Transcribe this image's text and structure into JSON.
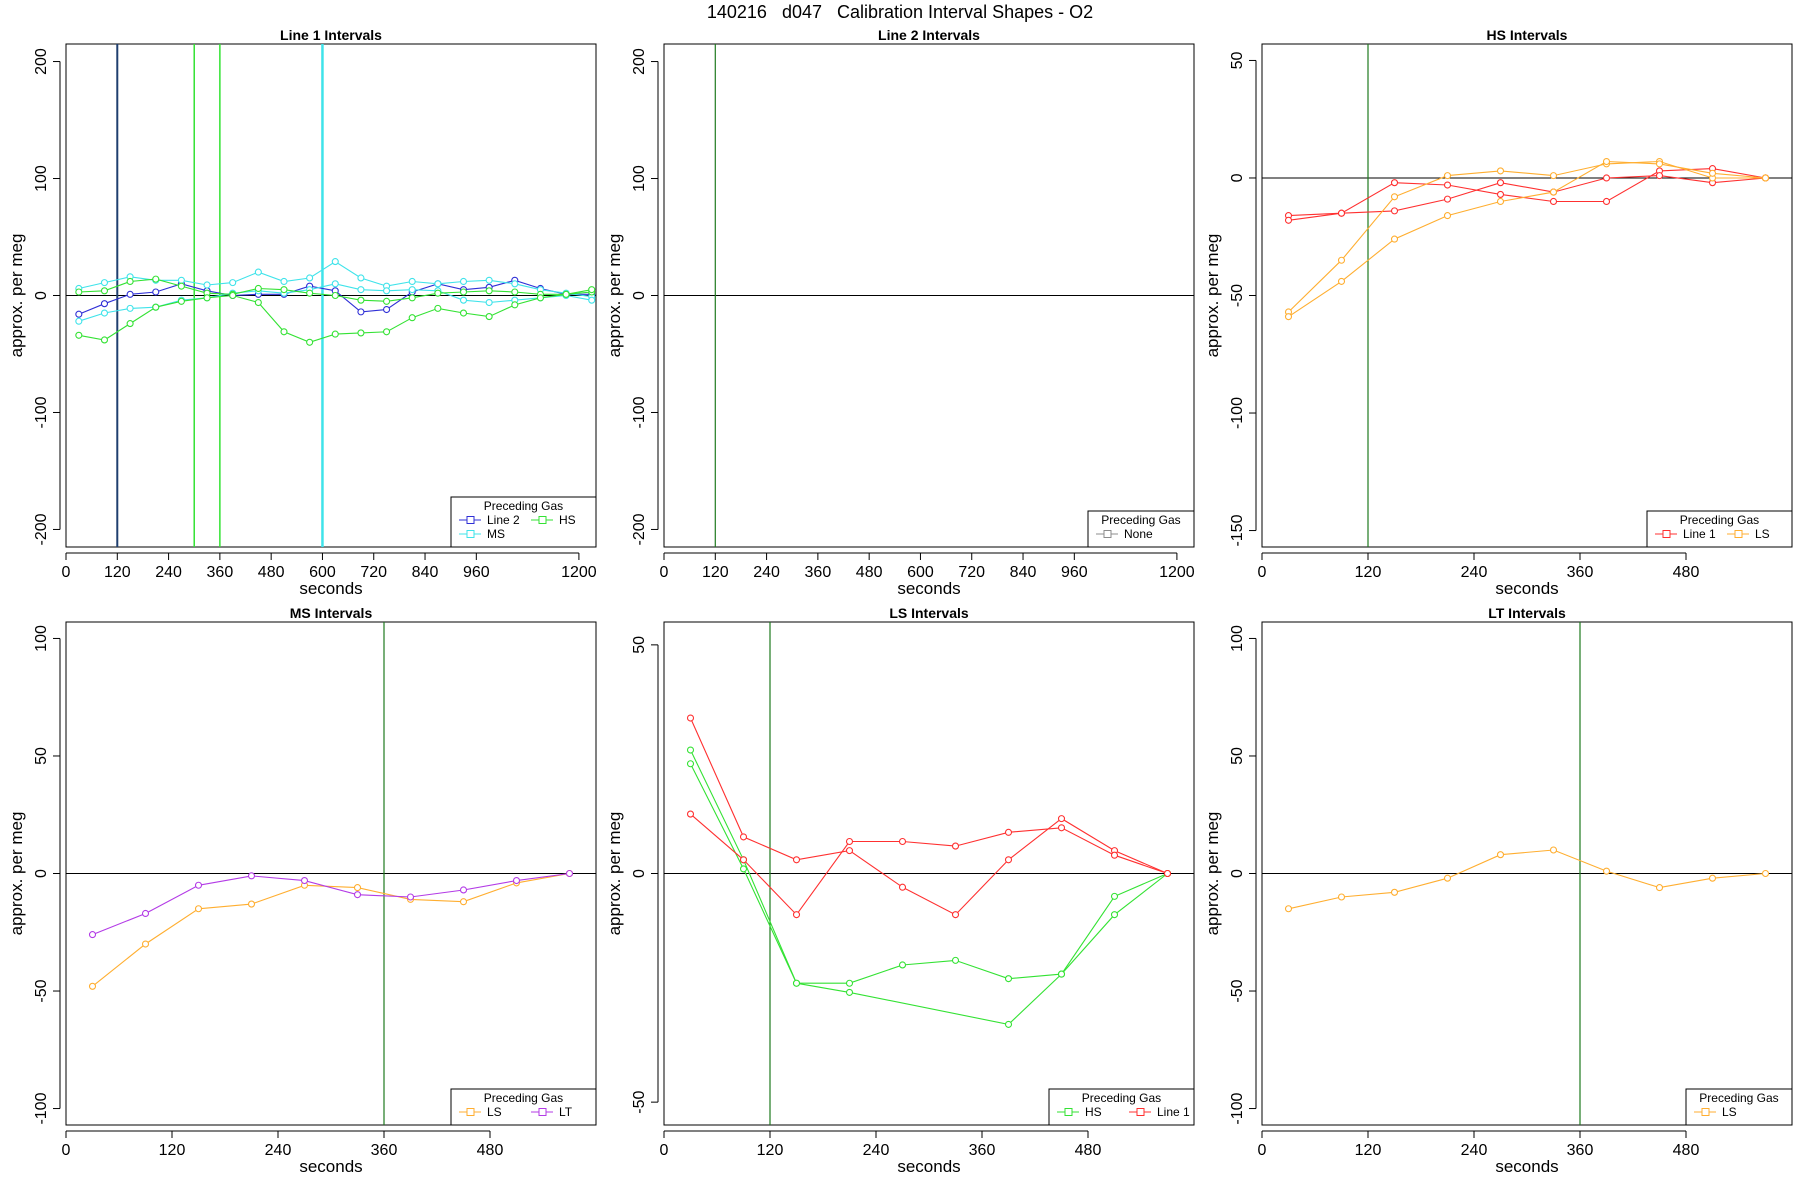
{
  "page_title": "140216   d047   Calibration Interval Shapes - O2",
  "colors": {
    "Line 1": "#ff3030",
    "Line 2": "#2f2fd6",
    "HS": "#33e233",
    "MS": "#3fe3ea",
    "LS": "#ffae30",
    "LT": "#b33be6",
    "None": "#8c8c8c",
    "vline": "#1f7a1f",
    "axis": "#000000"
  },
  "chart_data": [
    {
      "type": "line",
      "title": "Line 1 Intervals",
      "xlabel": "seconds",
      "ylabel": "approx. per meg",
      "xlim": [
        0,
        1240
      ],
      "ylim": [
        -215,
        215
      ],
      "xticks": [
        0,
        120,
        240,
        360,
        480,
        600,
        720,
        840,
        960,
        1200
      ],
      "yticks": [
        -200,
        -100,
        0,
        100,
        200
      ],
      "vlines": [
        {
          "x": 120,
          "color": "#1f3f6f",
          "width": 2
        },
        {
          "x": 300,
          "color": "#33e233",
          "width": 1.5
        },
        {
          "x": 360,
          "color": "#33e233",
          "width": 1.5
        },
        {
          "x": 600,
          "color": "#3fe3ea",
          "width": 2.5
        }
      ],
      "legend": {
        "title": "Preceding Gas",
        "entries": [
          "Line 2",
          "HS",
          "MS"
        ],
        "position": "bottom-right"
      },
      "series": [
        {
          "name": "Line 2",
          "x": [
            30,
            90,
            150,
            210,
            270,
            330,
            390,
            450,
            510,
            570,
            630,
            690,
            750,
            810,
            870,
            930,
            990,
            1050,
            1110,
            1170,
            1230
          ],
          "y": [
            -16,
            -7,
            1,
            3,
            10,
            4,
            0,
            1,
            1,
            8,
            4,
            -14,
            -12,
            3,
            10,
            5,
            7,
            13,
            6,
            1,
            1
          ]
        },
        {
          "name": "MS",
          "x": [
            30,
            90,
            150,
            210,
            270,
            330,
            390,
            450,
            510,
            570,
            630,
            690,
            750,
            810,
            870,
            930,
            990,
            1050,
            1110,
            1170,
            1230
          ],
          "y": [
            6,
            11,
            16,
            13,
            13,
            9,
            11,
            20,
            12,
            15,
            29,
            15,
            8,
            12,
            10,
            12,
            13,
            10,
            5,
            2,
            -1
          ]
        },
        {
          "name": "MS",
          "x": [
            30,
            90,
            150,
            210,
            270,
            330,
            390,
            450,
            510,
            570,
            630,
            690,
            750,
            810,
            870,
            930,
            990,
            1050,
            1110,
            1170,
            1230
          ],
          "y": [
            -22,
            -15,
            -11,
            -10,
            -4,
            -2,
            2,
            4,
            2,
            5,
            10,
            5,
            4,
            5,
            4,
            -4,
            -6,
            -4,
            -2,
            0,
            -4
          ]
        },
        {
          "name": "HS",
          "x": [
            30,
            90,
            150,
            210,
            270,
            330,
            390,
            450,
            510,
            570,
            630,
            690,
            750,
            810,
            870,
            930,
            990,
            1050,
            1110,
            1170,
            1230
          ],
          "y": [
            3,
            4,
            12,
            14,
            8,
            2,
            1,
            6,
            5,
            2,
            0,
            -4,
            -5,
            -2,
            2,
            3,
            4,
            3,
            1,
            1,
            3
          ]
        },
        {
          "name": "HS",
          "x": [
            30,
            90,
            150,
            210,
            270,
            330,
            390,
            450,
            510,
            570,
            630,
            690,
            750,
            810,
            870,
            930,
            990,
            1050,
            1110,
            1170,
            1230
          ],
          "y": [
            -34,
            -38,
            -24,
            -10,
            -5,
            -2,
            0,
            -6,
            -31,
            -40,
            -33,
            -32,
            -31,
            -19,
            -11,
            -15,
            -18,
            -8,
            -2,
            1,
            5
          ]
        }
      ]
    },
    {
      "type": "line",
      "title": "Line 2 Intervals",
      "xlabel": "seconds",
      "ylabel": "approx. per meg",
      "xlim": [
        0,
        1240
      ],
      "ylim": [
        -215,
        215
      ],
      "xticks": [
        0,
        120,
        240,
        360,
        480,
        600,
        720,
        840,
        960,
        1200
      ],
      "yticks": [
        -200,
        -100,
        0,
        100,
        200
      ],
      "vlines": [
        {
          "x": 120,
          "color": "#1f7a1f",
          "width": 1.2
        }
      ],
      "legend": {
        "title": "Preceding Gas",
        "entries": [
          "None"
        ],
        "position": "bottom-right"
      },
      "series": []
    },
    {
      "type": "line",
      "title": "HS Intervals",
      "xlabel": "seconds",
      "ylabel": "approx. per meg",
      "xlim": [
        0,
        600
      ],
      "ylim": [
        -157,
        57
      ],
      "xticks": [
        0,
        120,
        240,
        360,
        480
      ],
      "yticks": [
        -150,
        -100,
        -50,
        0,
        50
      ],
      "vlines": [
        {
          "x": 120,
          "color": "#1f7a1f",
          "width": 1.2
        }
      ],
      "legend": {
        "title": "Preceding Gas",
        "entries": [
          "Line 1",
          "LS"
        ],
        "position": "bottom-right"
      },
      "series": [
        {
          "name": "Line 1",
          "x": [
            30,
            90,
            150,
            210,
            270,
            330,
            390,
            450,
            510,
            570
          ],
          "y": [
            -16,
            -15,
            -2,
            -3,
            -7,
            -10,
            -10,
            3,
            4,
            0
          ]
        },
        {
          "name": "Line 1",
          "x": [
            30,
            90,
            150,
            210,
            270,
            330,
            390,
            450,
            510,
            570
          ],
          "y": [
            -18,
            -15,
            -14,
            -9,
            -2,
            -6,
            0,
            1,
            -2,
            0
          ]
        },
        {
          "name": "LS",
          "x": [
            30,
            90,
            150,
            210,
            270,
            330,
            390,
            450,
            510,
            570
          ],
          "y": [
            -57,
            -35,
            -8,
            1,
            3,
            1,
            6,
            7,
            0,
            0
          ]
        },
        {
          "name": "LS",
          "x": [
            30,
            90,
            150,
            210,
            270,
            330,
            390,
            450,
            510,
            570
          ],
          "y": [
            -59,
            -44,
            -26,
            -16,
            -10,
            -6,
            7,
            6,
            2,
            0
          ]
        }
      ]
    },
    {
      "type": "line",
      "title": "MS Intervals",
      "xlabel": "seconds",
      "ylabel": "approx. per meg",
      "xlim": [
        0,
        600
      ],
      "ylim": [
        -107,
        107
      ],
      "xticks": [
        0,
        120,
        240,
        360,
        480
      ],
      "yticks": [
        -100,
        -50,
        0,
        50,
        100
      ],
      "vlines": [
        {
          "x": 360,
          "color": "#1f7a1f",
          "width": 1.2
        }
      ],
      "legend": {
        "title": "Preceding Gas",
        "entries": [
          "LS",
          "LT"
        ],
        "position": "bottom-right"
      },
      "series": [
        {
          "name": "LS",
          "x": [
            30,
            90,
            150,
            210,
            270,
            330,
            390,
            450,
            510,
            570
          ],
          "y": [
            -48,
            -30,
            -15,
            -13,
            -5,
            -6,
            -11,
            -12,
            -4,
            0
          ]
        },
        {
          "name": "LT",
          "x": [
            30,
            90,
            150,
            210,
            270,
            330,
            390,
            450,
            510,
            570
          ],
          "y": [
            -26,
            -17,
            -5,
            -1,
            -3,
            -9,
            -10,
            -7,
            -3,
            0
          ]
        }
      ]
    },
    {
      "type": "line",
      "title": "LS Intervals",
      "xlabel": "seconds",
      "ylabel": "approx. per meg",
      "xlim": [
        0,
        600
      ],
      "ylim": [
        -55,
        55
      ],
      "xticks": [
        0,
        120,
        240,
        360,
        480
      ],
      "yticks": [
        -50,
        0,
        50
      ],
      "vlines": [
        {
          "x": 120,
          "color": "#1f7a1f",
          "width": 1.2
        }
      ],
      "legend": {
        "title": "Preceding Gas",
        "entries": [
          "HS",
          "Line 1"
        ],
        "position": "bottom-right"
      },
      "series": [
        {
          "name": "HS",
          "x": [
            30,
            90,
            150,
            210,
            270,
            330,
            390,
            450,
            510,
            570
          ],
          "y": [
            27,
            3,
            -24,
            -24,
            -20,
            -19,
            -23,
            -22,
            -5,
            0
          ]
        },
        {
          "name": "HS",
          "x": [
            30,
            90,
            150,
            210,
            390,
            450,
            510,
            570
          ],
          "y": [
            24,
            1,
            -24,
            -26,
            -33,
            -22,
            -9,
            0
          ]
        },
        {
          "name": "Line 1",
          "x": [
            30,
            90,
            150,
            210,
            270,
            330,
            390,
            450,
            510,
            570
          ],
          "y": [
            34,
            8,
            3,
            5,
            -3,
            -9,
            3,
            12,
            5,
            0
          ]
        },
        {
          "name": "Line 1",
          "x": [
            30,
            90,
            150,
            210,
            270,
            330,
            390,
            450,
            510,
            570
          ],
          "y": [
            13,
            3,
            -9,
            7,
            7,
            6,
            9,
            10,
            4,
            0
          ]
        }
      ]
    },
    {
      "type": "line",
      "title": "LT Intervals",
      "xlabel": "seconds",
      "ylabel": "approx. per meg",
      "xlim": [
        0,
        600
      ],
      "ylim": [
        -107,
        107
      ],
      "xticks": [
        0,
        120,
        240,
        360,
        480
      ],
      "yticks": [
        -100,
        -50,
        0,
        50,
        100
      ],
      "vlines": [
        {
          "x": 360,
          "color": "#1f7a1f",
          "width": 1.2
        }
      ],
      "legend": {
        "title": "Preceding Gas",
        "entries": [
          "LS"
        ],
        "position": "bottom-right"
      },
      "series": [
        {
          "name": "LS",
          "x": [
            30,
            90,
            150,
            210,
            270,
            330,
            390,
            450,
            510,
            570
          ],
          "y": [
            -15,
            -10,
            -8,
            -2,
            8,
            10,
            1,
            -6,
            -2,
            0
          ]
        }
      ]
    }
  ]
}
